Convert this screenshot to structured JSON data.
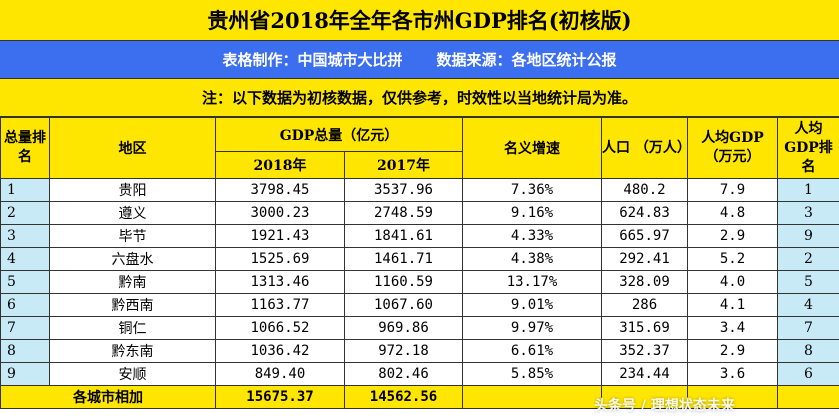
{
  "title": "贵州省2018年全年各市州GDP排名(初核版)",
  "source": {
    "maker": "表格制作：中国城市大比拼",
    "data_source": "数据来源：各地区统计公报"
  },
  "note": "注：以下数据为初核数据，仅供参考，时效性以当地统计局为准。",
  "headers": {
    "rank": "总量排名",
    "region": "地区",
    "gdp_total": "GDP总量（亿元）",
    "y2018": "2018年",
    "y2017": "2017年",
    "growth": "名义增速",
    "population": "人口 （万人）",
    "per_capita": "人均GDP（万元）",
    "per_capita_rank": "人均GDP排名"
  },
  "rows": [
    {
      "rank": "1",
      "region": "贵阳",
      "gdp2018": "3798.45",
      "gdp2017": "3537.96",
      "growth": "7.36%",
      "population": "480.2",
      "per_capita": "7.9",
      "per_capita_rank": "1"
    },
    {
      "rank": "2",
      "region": "遵义",
      "gdp2018": "3000.23",
      "gdp2017": "2748.59",
      "growth": "9.16%",
      "population": "624.83",
      "per_capita": "4.8",
      "per_capita_rank": "3"
    },
    {
      "rank": "3",
      "region": "毕节",
      "gdp2018": "1921.43",
      "gdp2017": "1841.61",
      "growth": "4.33%",
      "population": "665.97",
      "per_capita": "2.9",
      "per_capita_rank": "9"
    },
    {
      "rank": "4",
      "region": "六盘水",
      "gdp2018": "1525.69",
      "gdp2017": "1461.71",
      "growth": "4.38%",
      "population": "292.41",
      "per_capita": "5.2",
      "per_capita_rank": "2"
    },
    {
      "rank": "5",
      "region": "黔南",
      "gdp2018": "1313.46",
      "gdp2017": "1160.59",
      "growth": "13.17%",
      "population": "328.09",
      "per_capita": "4.0",
      "per_capita_rank": "5"
    },
    {
      "rank": "6",
      "region": "黔西南",
      "gdp2018": "1163.77",
      "gdp2017": "1067.60",
      "growth": "9.01%",
      "population": "286",
      "per_capita": "4.1",
      "per_capita_rank": "4"
    },
    {
      "rank": "7",
      "region": "铜仁",
      "gdp2018": "1066.52",
      "gdp2017": "969.86",
      "growth": "9.97%",
      "population": "315.69",
      "per_capita": "3.4",
      "per_capita_rank": "7"
    },
    {
      "rank": "8",
      "region": "黔东南",
      "gdp2018": "1036.42",
      "gdp2017": "972.18",
      "growth": "6.61%",
      "population": "352.37",
      "per_capita": "2.9",
      "per_capita_rank": "8"
    },
    {
      "rank": "9",
      "region": "安顺",
      "gdp2018": "849.40",
      "gdp2017": "802.46",
      "growth": "5.85%",
      "population": "234.44",
      "per_capita": "3.6",
      "per_capita_rank": "6"
    }
  ],
  "total_row": {
    "label": "各城市相加",
    "gdp2018": "15675.37",
    "gdp2017": "14562.56"
  },
  "watermark": "头条号 / 理想状态未来",
  "colors": {
    "banner_yellow": "#ffe600",
    "source_blue": "#3b6ff0",
    "rank_cyan": "#c8eaf7"
  }
}
